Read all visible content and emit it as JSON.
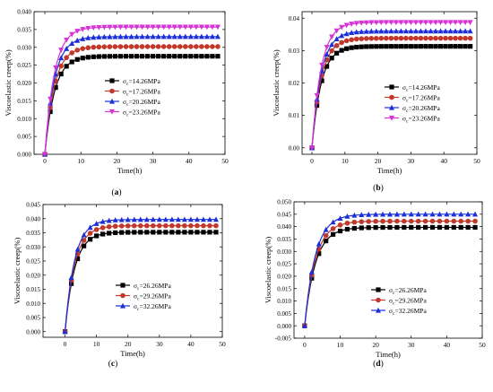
{
  "chart_data": [
    {
      "type": "line",
      "panel_label": "(a)",
      "xlabel": "Time(h)",
      "ylabel": "Viscoelastic creep(%)",
      "xlim": [
        -3,
        50
      ],
      "ylim": [
        0,
        0.04
      ],
      "xticks": [
        0,
        10,
        20,
        30,
        40,
        50
      ],
      "yticks": [
        0.0,
        0.005,
        0.01,
        0.015,
        0.02,
        0.025,
        0.03,
        0.035,
        0.04
      ],
      "ytick_labels": [
        "0.000",
        "0.005",
        "0.010",
        "0.015",
        "0.020",
        "0.025",
        "0.030",
        "0.035",
        "0.040"
      ],
      "grid": false,
      "legend_position": "center-right",
      "x": [
        0,
        1.5,
        3,
        4.5,
        6,
        7.5,
        9,
        10.5,
        12,
        13.5,
        15,
        16.5,
        18,
        19.5,
        21,
        22.5,
        24,
        25.5,
        27,
        28.5,
        30,
        31.5,
        33,
        34.5,
        36,
        37.5,
        39,
        40.5,
        42,
        43.5,
        45,
        46.5,
        48
      ],
      "series": [
        {
          "name": "σc=14.26MPa",
          "sub_name": "c",
          "label_prefix": "σ",
          "label_suffix": "=14.26MPa",
          "color": "#000000",
          "marker": "square",
          "final": 0.0275,
          "k": 0.38
        },
        {
          "name": "σc=17.26MPa",
          "sub_name": "c",
          "label_prefix": "σ",
          "label_suffix": "=17.26MPa",
          "color": "#c0392b",
          "marker": "circle",
          "final": 0.0302,
          "k": 0.38
        },
        {
          "name": "σc=20.26MPa",
          "sub_name": "c",
          "label_prefix": "σ",
          "label_suffix": "=20.26MPa",
          "color": "#1a2fd8",
          "marker": "triangle-up",
          "final": 0.033,
          "k": 0.38
        },
        {
          "name": "σc=23.26MPa",
          "sub_name": "c",
          "label_prefix": "σ",
          "label_suffix": "=23.26MPa",
          "color": "#d633d6",
          "marker": "triangle-down",
          "final": 0.0357,
          "k": 0.38
        }
      ]
    },
    {
      "type": "line",
      "panel_label": "(b)",
      "xlabel": "Time(h)",
      "ylabel": "Viscoelastic creep(%)",
      "xlim": [
        -3,
        50
      ],
      "ylim": [
        -0.002,
        0.042
      ],
      "xticks": [
        0,
        10,
        20,
        30,
        40,
        50
      ],
      "yticks": [
        0.0,
        0.01,
        0.02,
        0.03,
        0.04
      ],
      "ytick_labels": [
        "0.00",
        "0.01",
        "0.02",
        "0.03",
        "0.04"
      ],
      "grid": false,
      "legend_position": "center-right",
      "x": [
        0,
        1.5,
        3,
        4.5,
        6,
        7.5,
        9,
        10.5,
        12,
        13.5,
        15,
        16.5,
        18,
        19.5,
        21,
        22.5,
        24,
        25.5,
        27,
        28.5,
        30,
        31.5,
        33,
        34.5,
        36,
        37.5,
        39,
        40.5,
        42,
        43.5,
        45,
        46.5,
        48
      ],
      "series": [
        {
          "name": "σc=14.26MPa",
          "label_prefix": "σ",
          "sub_name": "c",
          "label_suffix": "=14.26MPa",
          "color": "#000000",
          "marker": "square",
          "final": 0.0313,
          "k": 0.36
        },
        {
          "name": "σc=17.26MPa",
          "label_prefix": "σ",
          "sub_name": "c",
          "label_suffix": "=17.26MPa",
          "color": "#c0392b",
          "marker": "circle",
          "final": 0.0338,
          "k": 0.36
        },
        {
          "name": "σc=20.26MPa",
          "label_prefix": "σ",
          "sub_name": "c",
          "label_suffix": "=20.26MPa",
          "color": "#1a2fd8",
          "marker": "triangle-up",
          "final": 0.036,
          "k": 0.36
        },
        {
          "name": "σc=23.26MPa",
          "label_prefix": "σ",
          "sub_name": "c",
          "label_suffix": "=23.26MPa",
          "color": "#d633d6",
          "marker": "triangle-down",
          "final": 0.0387,
          "k": 0.36
        }
      ]
    },
    {
      "type": "line",
      "panel_label": "(c)",
      "xlabel": "Time(h)",
      "ylabel": "Viscoelastic creep(%)",
      "xlim": [
        -7,
        50
      ],
      "ylim": [
        -0.002,
        0.045
      ],
      "xticks": [
        0,
        10,
        20,
        30,
        40,
        50
      ],
      "yticks": [
        0.0,
        0.005,
        0.01,
        0.015,
        0.02,
        0.025,
        0.03,
        0.035,
        0.04,
        0.045
      ],
      "ytick_labels": [
        "0.000",
        "0.005",
        "0.010",
        "0.015",
        "0.020",
        "0.025",
        "0.030",
        "0.035",
        "0.040",
        "0.045"
      ],
      "grid": false,
      "legend_position": "center-left",
      "x": [
        0,
        2,
        4,
        6,
        8,
        10,
        12,
        14,
        16,
        18,
        20,
        22,
        24,
        26,
        28,
        30,
        32,
        34,
        36,
        38,
        40,
        42,
        44,
        46,
        48
      ],
      "series": [
        {
          "name": "σc=26.26MPa",
          "label_prefix": "σ",
          "sub_name": "c",
          "label_suffix": "=26.26MPa",
          "color": "#000000",
          "marker": "square",
          "final": 0.0352,
          "k": 0.33
        },
        {
          "name": "σc=29.26MPa",
          "label_prefix": "σ",
          "sub_name": "c",
          "label_suffix": "=29.26MPa",
          "color": "#c0392b",
          "marker": "circle",
          "final": 0.0375,
          "k": 0.33
        },
        {
          "name": "σc=32.26MPa",
          "label_prefix": "σ",
          "sub_name": "c",
          "label_suffix": "=32.26MPa",
          "color": "#1a2fd8",
          "marker": "triangle-up",
          "final": 0.0397,
          "k": 0.33
        }
      ]
    },
    {
      "type": "line",
      "panel_label": "(d)",
      "xlabel": "Time(h)",
      "ylabel": "Viscoelastic creep(%)",
      "xlim": [
        -3,
        50
      ],
      "ylim": [
        -0.005,
        0.05
      ],
      "xticks": [
        0,
        10,
        20,
        30,
        40,
        50
      ],
      "yticks": [
        -0.005,
        0.0,
        0.005,
        0.01,
        0.015,
        0.02,
        0.025,
        0.03,
        0.035,
        0.04,
        0.045,
        0.05
      ],
      "ytick_labels": [
        "-0.005",
        "0.000",
        "0.005",
        "0.010",
        "0.015",
        "0.020",
        "0.025",
        "0.030",
        "0.035",
        "0.040",
        "0.045",
        "0.050"
      ],
      "grid": false,
      "legend_position": "center-left",
      "x": [
        0,
        2,
        4,
        6,
        8,
        10,
        12,
        14,
        16,
        18,
        20,
        22,
        24,
        26,
        28,
        30,
        32,
        34,
        36,
        38,
        40,
        42,
        44,
        46,
        48
      ],
      "series": [
        {
          "name": "σc=26.26MPa",
          "label_prefix": "σ",
          "sub_name": "c",
          "label_suffix": "=26.26MPa",
          "color": "#000000",
          "marker": "square",
          "final": 0.0397,
          "k": 0.33
        },
        {
          "name": "σc=29.26MPa",
          "label_prefix": "σ",
          "sub_name": "c",
          "label_suffix": "=29.26MPa",
          "color": "#c0392b",
          "marker": "circle",
          "final": 0.0422,
          "k": 0.33
        },
        {
          "name": "σc=32.26MPa",
          "label_prefix": "σ",
          "sub_name": "c",
          "label_suffix": "=32.26MPa",
          "color": "#1a2fd8",
          "marker": "triangle-up",
          "final": 0.045,
          "k": 0.33
        }
      ]
    }
  ]
}
